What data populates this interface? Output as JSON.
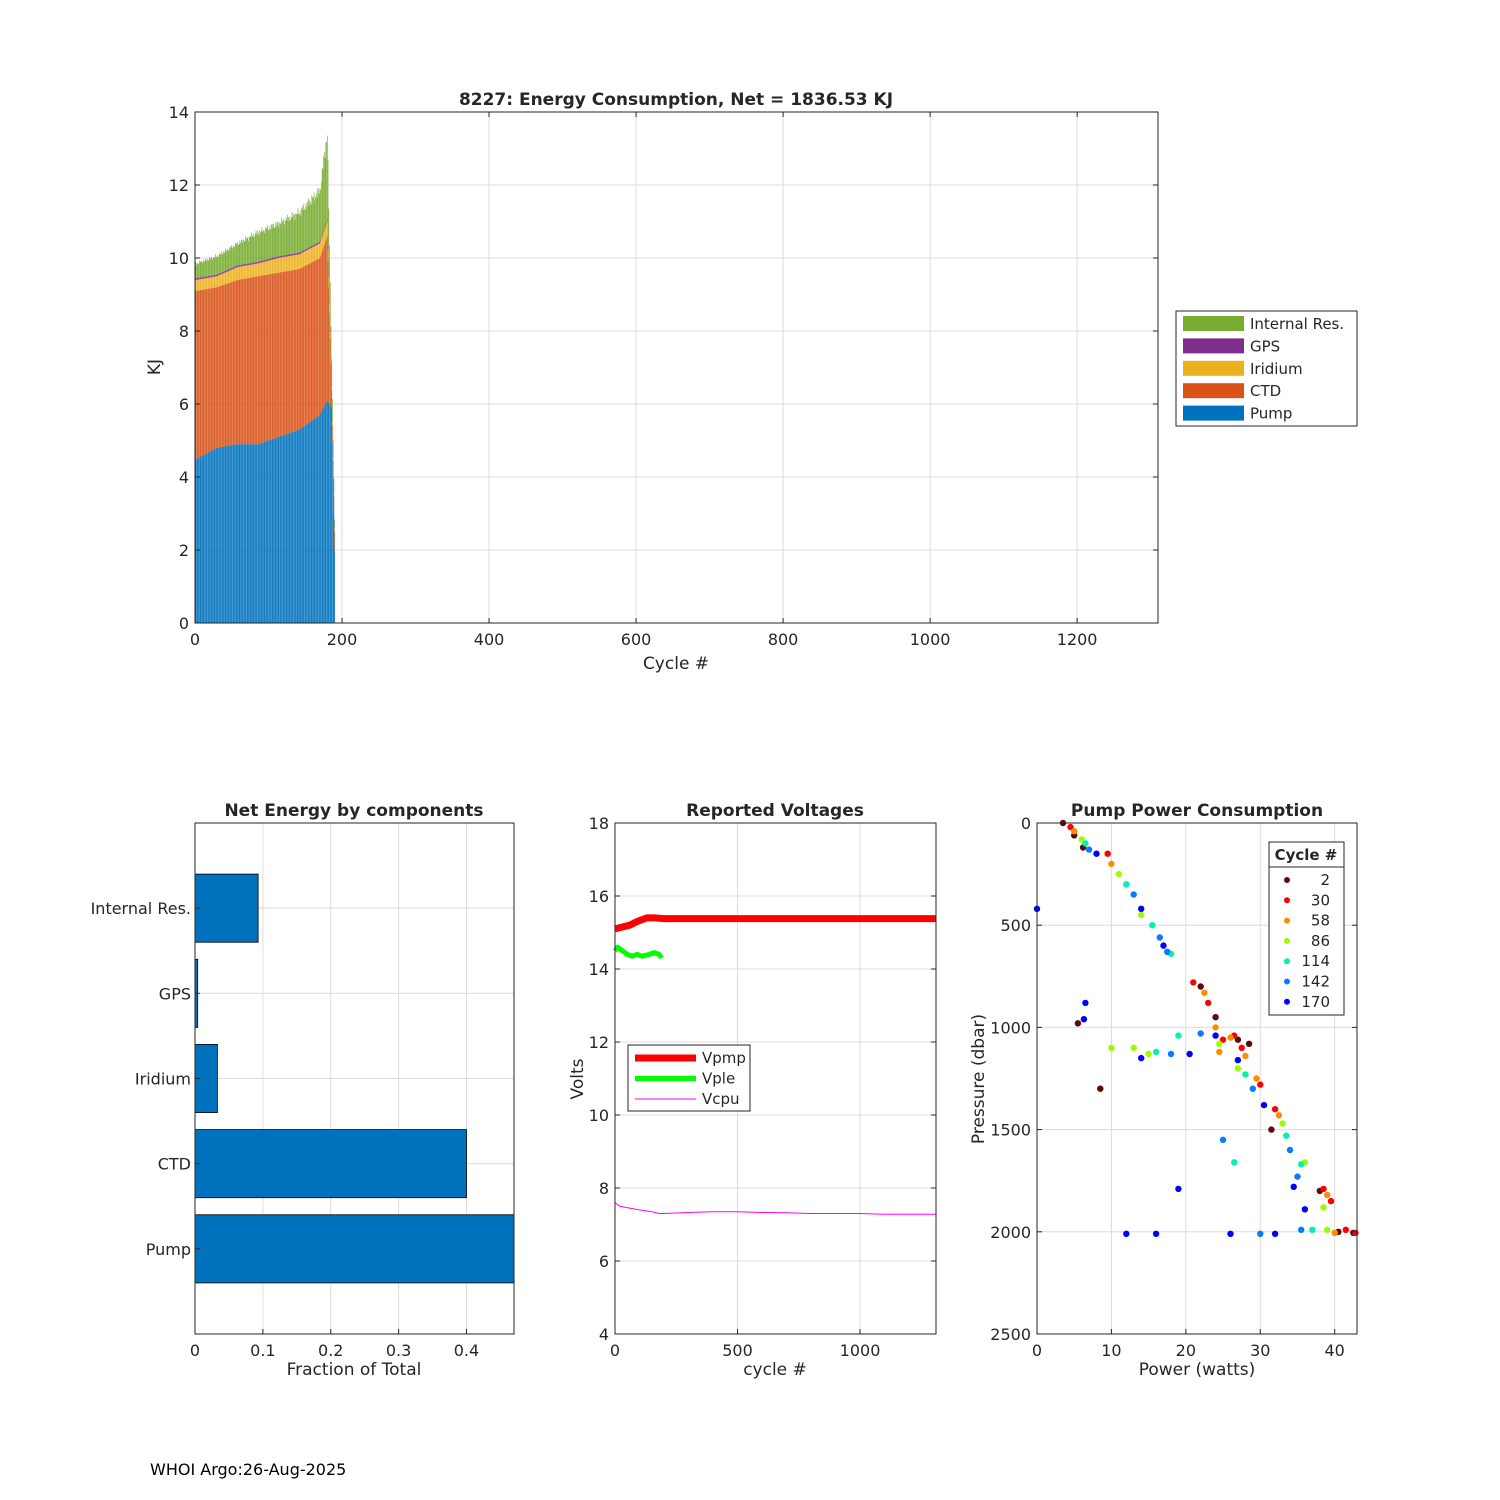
{
  "footer": "WHOI Argo:26-Aug-2025",
  "chart_data": [
    {
      "id": "energy",
      "type": "bar",
      "stacked": true,
      "title": "8227: Energy Consumption,  Net = 1836.53 KJ",
      "xlabel": "Cycle #",
      "ylabel": "KJ",
      "xlim": [
        0,
        1310
      ],
      "ylim": [
        0,
        14
      ],
      "xticks": [
        0,
        200,
        400,
        600,
        800,
        1000,
        1200
      ],
      "yticks": [
        0,
        2,
        4,
        6,
        8,
        10,
        12,
        14
      ],
      "grid": true,
      "legend_position": "outside-right",
      "legend": [
        "Internal Res.",
        "GPS",
        "Iridium",
        "CTD",
        "Pump"
      ],
      "colors": {
        "Pump": "#0072bd",
        "CTD": "#d95319",
        "Iridium": "#edb120",
        "GPS": "#7e2f8e",
        "Internal Res.": "#77ac30"
      },
      "cycles": [
        2,
        30,
        58,
        86,
        114,
        142,
        170,
        180,
        186,
        190
      ],
      "series": [
        {
          "name": "Pump",
          "values": [
            4.5,
            4.8,
            4.9,
            4.9,
            5.1,
            5.3,
            5.7,
            6.1,
            5.9,
            2.0
          ]
        },
        {
          "name": "CTD",
          "values": [
            4.6,
            4.4,
            4.5,
            4.6,
            4.5,
            4.4,
            4.3,
            4.5,
            0.5,
            0.5
          ]
        },
        {
          "name": "Iridium",
          "values": [
            0.3,
            0.3,
            0.35,
            0.35,
            0.4,
            0.4,
            0.4,
            0.4,
            0.1,
            0.1
          ]
        },
        {
          "name": "GPS",
          "values": [
            0.05,
            0.05,
            0.05,
            0.05,
            0.05,
            0.05,
            0.05,
            0.05,
            0.02,
            0.02
          ]
        },
        {
          "name": "Internal Res.",
          "values": [
            0.4,
            0.5,
            0.6,
            0.8,
            0.9,
            1.1,
            1.4,
            2.4,
            0.7,
            0.2
          ]
        }
      ]
    },
    {
      "id": "components",
      "type": "bar",
      "orientation": "horizontal",
      "title": "Net Energy by components",
      "xlabel": "Fraction of Total",
      "xlim": [
        0,
        0.47
      ],
      "xticks": [
        0,
        0.1,
        0.2,
        0.3,
        0.4
      ],
      "grid": true,
      "categories": [
        "Internal Res.",
        "GPS",
        "Iridium",
        "CTD",
        "Pump"
      ],
      "values": [
        0.093,
        0.004,
        0.033,
        0.4,
        0.47
      ],
      "color": "#0072bd"
    },
    {
      "id": "voltages",
      "type": "line",
      "title": "Reported Voltages",
      "xlabel": "cycle #",
      "ylabel": "Volts",
      "xlim": [
        0,
        1310
      ],
      "ylim": [
        4,
        18
      ],
      "xticks": [
        0,
        500,
        1000
      ],
      "yticks": [
        4,
        6,
        8,
        10,
        12,
        14,
        16,
        18
      ],
      "grid": true,
      "legend_position": "middle-left",
      "series": [
        {
          "name": "Vpmp",
          "color": "#ff0000",
          "x": [
            0,
            30,
            60,
            90,
            110,
            130,
            160,
            200,
            1310
          ],
          "y": [
            15.1,
            15.15,
            15.2,
            15.3,
            15.35,
            15.4,
            15.4,
            15.38,
            15.38
          ]
        },
        {
          "name": "Vple",
          "color": "#00ff00",
          "x": [
            0,
            10,
            30,
            50,
            70,
            90,
            110,
            140,
            160,
            180,
            190
          ],
          "y": [
            14.5,
            14.6,
            14.5,
            14.4,
            14.35,
            14.4,
            14.35,
            14.4,
            14.45,
            14.4,
            14.3
          ]
        },
        {
          "name": "Vcpu",
          "color": "#ff00ff",
          "x": [
            0,
            20,
            60,
            100,
            150,
            180,
            200,
            300,
            400,
            500,
            600,
            700,
            800,
            900,
            1000,
            1100,
            1200,
            1310
          ],
          "y": [
            7.6,
            7.5,
            7.45,
            7.4,
            7.35,
            7.3,
            7.3,
            7.33,
            7.35,
            7.35,
            7.33,
            7.32,
            7.3,
            7.3,
            7.3,
            7.28,
            7.28,
            7.28
          ]
        }
      ]
    },
    {
      "id": "pump_power",
      "type": "scatter",
      "title": "Pump Power Consumption",
      "xlabel": "Power (watts)",
      "ylabel": "Pressure (dbar)",
      "xlim": [
        0,
        43
      ],
      "ylim": [
        0,
        2500
      ],
      "y_reversed": true,
      "xticks": [
        0,
        10,
        20,
        30,
        40
      ],
      "yticks": [
        0,
        500,
        1000,
        1500,
        2000,
        2500
      ],
      "grid": true,
      "legend_title": "Cycle #",
      "legend_position": "top-right",
      "series": [
        {
          "name": "2",
          "color": "#5c0a0a",
          "points": [
            [
              3.5,
              0
            ],
            [
              5,
              60
            ],
            [
              6.2,
              120
            ],
            [
              22,
              800
            ],
            [
              24,
              950
            ],
            [
              28.5,
              1080
            ],
            [
              31.5,
              1500
            ],
            [
              38,
              1800
            ],
            [
              40.5,
              2000
            ],
            [
              42.5,
              2005
            ],
            [
              27,
              1060
            ],
            [
              8.5,
              1300
            ],
            [
              5.5,
              980
            ]
          ]
        },
        {
          "name": "30",
          "color": "#ff0000",
          "points": [
            [
              4.5,
              20
            ],
            [
              9.5,
              150
            ],
            [
              21,
              780
            ],
            [
              23,
              880
            ],
            [
              27.5,
              1100
            ],
            [
              30,
              1280
            ],
            [
              32,
              1400
            ],
            [
              38.5,
              1790
            ],
            [
              39.5,
              1850
            ],
            [
              41.5,
              1990
            ],
            [
              42.8,
              2005
            ],
            [
              26.5,
              1040
            ],
            [
              25,
              1060
            ]
          ]
        },
        {
          "name": "58",
          "color": "#ff8c00",
          "points": [
            [
              5,
              40
            ],
            [
              10,
              200
            ],
            [
              22.5,
              830
            ],
            [
              24,
              1000
            ],
            [
              28,
              1140
            ],
            [
              29.5,
              1250
            ],
            [
              32.5,
              1430
            ],
            [
              39,
              1820
            ],
            [
              40,
              2005
            ],
            [
              26,
              1050
            ],
            [
              24.5,
              1120
            ]
          ]
        },
        {
          "name": "86",
          "color": "#99ff00",
          "points": [
            [
              6,
              80
            ],
            [
              11,
              250
            ],
            [
              14,
              450
            ],
            [
              24.5,
              1080
            ],
            [
              27,
              1200
            ],
            [
              33,
              1470
            ],
            [
              36,
              1660
            ],
            [
              38.5,
              1880
            ],
            [
              39,
              1990
            ],
            [
              13,
              1100
            ],
            [
              15,
              1130
            ],
            [
              10,
              1100
            ]
          ]
        },
        {
          "name": "114",
          "color": "#00f2b0",
          "points": [
            [
              6.5,
              100
            ],
            [
              12,
              300
            ],
            [
              15.5,
              500
            ],
            [
              18,
              640
            ],
            [
              28,
              1230
            ],
            [
              33.5,
              1530
            ],
            [
              35.5,
              1670
            ],
            [
              37,
              1990
            ],
            [
              19,
              1040
            ],
            [
              16,
              1120
            ],
            [
              26.5,
              1660
            ]
          ]
        },
        {
          "name": "142",
          "color": "#0a7bff",
          "points": [
            [
              7,
              130
            ],
            [
              13,
              350
            ],
            [
              16.5,
              560
            ],
            [
              17.5,
              630
            ],
            [
              29,
              1300
            ],
            [
              34,
              1600
            ],
            [
              35,
              1730
            ],
            [
              35.5,
              1990
            ],
            [
              22,
              1030
            ],
            [
              18,
              1130
            ],
            [
              25,
              1550
            ],
            [
              30,
              2010
            ]
          ]
        },
        {
          "name": "170",
          "color": "#0000ff",
          "points": [
            [
              8,
              150
            ],
            [
              14,
              420
            ],
            [
              17,
              600
            ],
            [
              30.5,
              1380
            ],
            [
              34.5,
              1780
            ],
            [
              36,
              1890
            ],
            [
              32,
              2010
            ],
            [
              26,
              2010
            ],
            [
              16,
              2010
            ],
            [
              12,
              2010
            ],
            [
              24,
              1040
            ],
            [
              20.5,
              1130
            ],
            [
              14,
              1150
            ],
            [
              6.5,
              880
            ],
            [
              6.3,
              960
            ],
            [
              0,
              420
            ],
            [
              19,
              1790
            ],
            [
              27,
              1160
            ]
          ]
        }
      ]
    }
  ]
}
